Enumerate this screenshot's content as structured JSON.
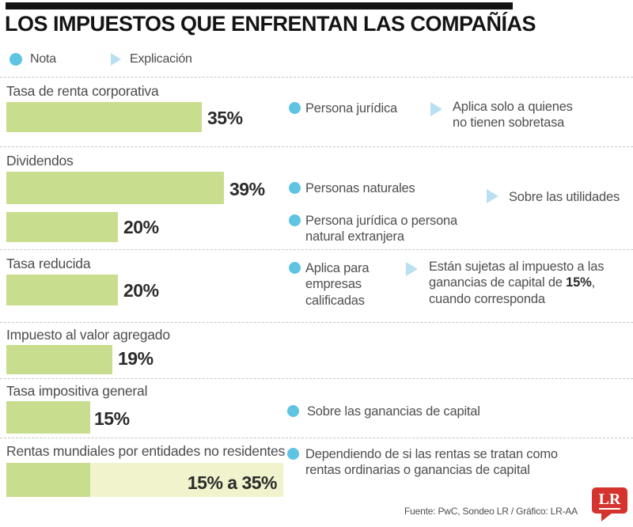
{
  "title": "LOS IMPUESTOS QUE ENFRENTAN LAS COMPAÑÍAS",
  "legend": [
    {
      "icon": "nota-dot",
      "label": "Nota"
    },
    {
      "icon": "explicacion-triangle",
      "label": "Explicación"
    }
  ],
  "colors": {
    "bar_green": "#c8dd8e",
    "bar_pale_green": "#f1f3cd",
    "nota_blue": "#5fc3e2",
    "explicacion_blue": "#b9e0f0",
    "logo_red": "#d5332e",
    "topbar_black": "#121212"
  },
  "chart_data": {
    "type": "bar",
    "orientation": "horizontal",
    "unit": "percent",
    "title": "LOS IMPUESTOS QUE ENFRENTAN LAS COMPAÑÍAS",
    "legend_entries": [
      "Nota",
      "Explicación"
    ],
    "xlim": [
      0,
      40
    ],
    "rows": [
      {
        "category": "Tasa de renta corporativa",
        "bars": [
          {
            "value": 35,
            "label": "35%"
          }
        ],
        "notas": [
          {
            "text": "Persona jurídica"
          }
        ],
        "explicacion": {
          "text": "Aplica solo a quienes no tienen sobretasa"
        }
      },
      {
        "category": "Dividendos",
        "bars": [
          {
            "value": 39,
            "label": "39%"
          },
          {
            "value": 20,
            "label": "20%"
          }
        ],
        "notas": [
          {
            "text": "Personas naturales"
          },
          {
            "text": "Persona jurídica o persona natural extranjera"
          }
        ],
        "explicacion": {
          "text": "Sobre las utilidades"
        }
      },
      {
        "category": "Tasa reducida",
        "bars": [
          {
            "value": 20,
            "label": "20%"
          }
        ],
        "notas": [
          {
            "text": "Aplica para empresas calificadas"
          }
        ],
        "explicacion": {
          "text_before": "Están sujetas al impuesto a las ganancias de capital de ",
          "text_bold": "15%",
          "text_after": ", cuando corresponda"
        }
      },
      {
        "category": "Impuesto al valor agregado",
        "bars": [
          {
            "value": 19,
            "label": "19%"
          }
        ],
        "notas": [],
        "explicacion": null
      },
      {
        "category": "Tasa impositiva general",
        "bars": [
          {
            "value": 15,
            "label": "15%"
          }
        ],
        "notas": [
          {
            "text": "Sobre las ganancias de capital"
          }
        ],
        "explicacion": null
      },
      {
        "category": "Rentas mundiales por entidades no residentes",
        "bars": [
          {
            "value_min": 15,
            "value_max": 35,
            "label": "15% a 35%"
          }
        ],
        "notas": [
          {
            "text": "Dependiendo de si las rentas se tratan como rentas ordinarias o ganancias de capital"
          }
        ],
        "explicacion": null
      }
    ],
    "source": "Fuente: PwC, Sondeo LR / Gráfico: LR-AA"
  },
  "footer": {
    "source": "Fuente: PwC, Sondeo LR / Gráfico: LR-AA",
    "logo_text": "LR"
  }
}
